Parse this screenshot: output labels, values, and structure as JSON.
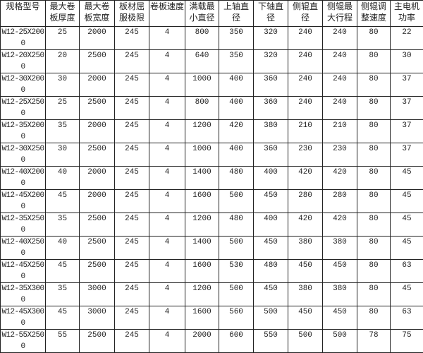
{
  "headers": [
    "规格型号",
    "最大卷板厚度",
    "最大卷板宽度",
    "板材屈服极限",
    "卷板速度",
    "满载最小直径",
    "上轴直径",
    "下轴直径",
    "侧辊直径",
    "侧辊最大行程",
    "侧辊调整速度",
    "主电机功率"
  ],
  "rows": [
    [
      "W12-25X2000",
      "25",
      "2000",
      "245",
      "4",
      "800",
      "350",
      "320",
      "240",
      "240",
      "80",
      "22"
    ],
    [
      "W12-20X2500",
      "20",
      "2500",
      "245",
      "4",
      "640",
      "350",
      "320",
      "240",
      "240",
      "80",
      "30"
    ],
    [
      "W12-30X2000",
      "30",
      "2000",
      "245",
      "4",
      "1000",
      "400",
      "360",
      "240",
      "240",
      "80",
      "37"
    ],
    [
      "W12-25X2500",
      "25",
      "2500",
      "245",
      "4",
      "800",
      "400",
      "360",
      "240",
      "240",
      "80",
      "37"
    ],
    [
      "W12-35X2000",
      "35",
      "2000",
      "245",
      "4",
      "1200",
      "420",
      "380",
      "210",
      "210",
      "80",
      "37"
    ],
    [
      "W12-30X2500",
      "30",
      "2500",
      "245",
      "4",
      "1000",
      "400",
      "360",
      "230",
      "230",
      "80",
      "37"
    ],
    [
      "W12-40X2000",
      "40",
      "2000",
      "245",
      "4",
      "1400",
      "480",
      "400",
      "420",
      "420",
      "80",
      "45"
    ],
    [
      "W12-45X2000",
      "45",
      "2000",
      "245",
      "4",
      "1600",
      "500",
      "450",
      "280",
      "280",
      "80",
      "45"
    ],
    [
      "W12-35X2500",
      "35",
      "2500",
      "245",
      "4",
      "1200",
      "480",
      "400",
      "420",
      "420",
      "80",
      "45"
    ],
    [
      "W12-40X2500",
      "40",
      "2500",
      "245",
      "4",
      "1400",
      "500",
      "450",
      "380",
      "380",
      "80",
      "45"
    ],
    [
      "W12-45X2500",
      "45",
      "2500",
      "245",
      "4",
      "1600",
      "530",
      "480",
      "450",
      "450",
      "80",
      "63"
    ],
    [
      "W12-35X3000",
      "35",
      "3000",
      "245",
      "4",
      "1200",
      "500",
      "450",
      "380",
      "380",
      "80",
      "45"
    ],
    [
      "W12-45X3000",
      "45",
      "3000",
      "245",
      "4",
      "1600",
      "560",
      "500",
      "450",
      "450",
      "80",
      "63"
    ],
    [
      "W12-55X2500",
      "55",
      "2500",
      "245",
      "4",
      "2000",
      "600",
      "550",
      "500",
      "500",
      "78",
      "75"
    ]
  ]
}
